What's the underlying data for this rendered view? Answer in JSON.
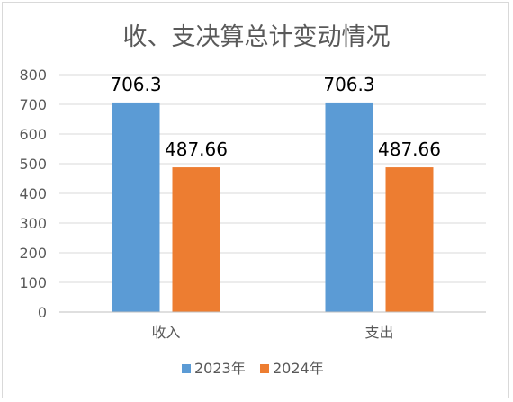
{
  "chart_data": {
    "type": "bar",
    "title": "收、支决算总计变动情况",
    "categories": [
      "收入",
      "支出"
    ],
    "series": [
      {
        "name": "2023年",
        "values": [
          706.3,
          706.3
        ],
        "labels": [
          "706.3",
          "706.3"
        ],
        "color": "#5b9bd5"
      },
      {
        "name": "2024年",
        "values": [
          487.66,
          487.66
        ],
        "labels": [
          "487.66",
          "487.66"
        ],
        "color": "#ed7d31"
      }
    ],
    "ylim": [
      0,
      800
    ],
    "yticks": [
      0,
      100,
      200,
      300,
      400,
      500,
      600,
      700,
      800
    ],
    "ytick_labels": [
      "0",
      "100",
      "200",
      "300",
      "400",
      "500",
      "600",
      "700",
      "800"
    ],
    "grid": true,
    "legend_position": "bottom",
    "xlabel": "",
    "ylabel": ""
  }
}
